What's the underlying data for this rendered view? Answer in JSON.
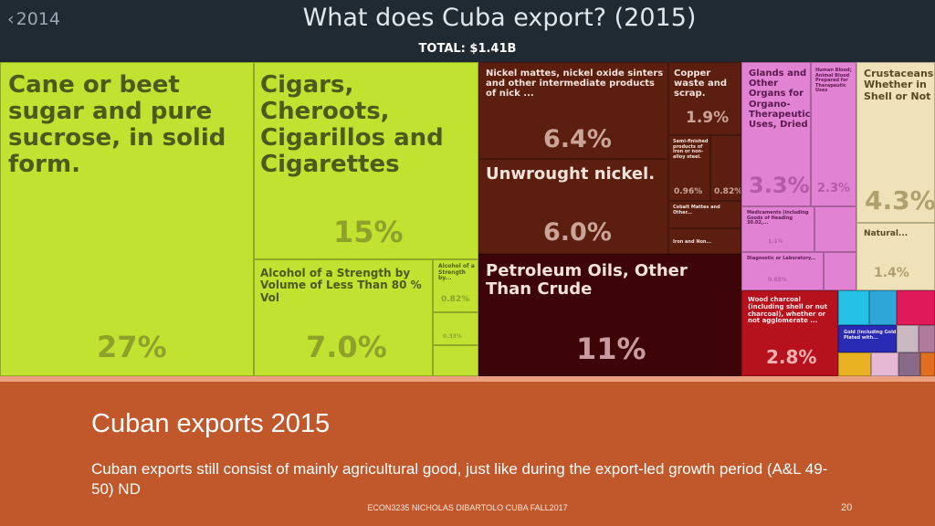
{
  "header": {
    "back_label": "2014",
    "title": "What does Cuba export? (2015)",
    "total": "TOTAL: $1.41B"
  },
  "chart_data": {
    "type": "treemap",
    "title": "What does Cuba export? (2015)",
    "total": "$1.41B",
    "items": [
      {
        "name": "Cane or beet sugar and pure sucrose, in solid form.",
        "share": "27%",
        "color": "#c1e231"
      },
      {
        "name": "Cigars, Cheroots, Cigarillos and Cigarettes",
        "share": "15%",
        "color": "#c1e231"
      },
      {
        "name": "Alcohol of a Strength by Volume of Less Than 80 % Vol",
        "share": "7.0%",
        "color": "#c1e231"
      },
      {
        "name": "Alcohol of a Strength by...",
        "share": "0.82%",
        "color": "#c1e231"
      },
      {
        "name": "",
        "share": "0.33%",
        "color": "#c1e231"
      },
      {
        "name": "Nickel mattes, nickel oxide sinters and other intermediate products of nick ...",
        "share": "6.4%",
        "color": "#5c1e0f"
      },
      {
        "name": "Unwrought nickel.",
        "share": "6.0%",
        "color": "#5c1e0f"
      },
      {
        "name": "Copper waste and scrap.",
        "share": "1.9%",
        "color": "#5c1e0f"
      },
      {
        "name": "Semi-finished products of iron or non-alloy steel.",
        "share": "0.96%",
        "color": "#5c1e0f"
      },
      {
        "name": "",
        "share": "0.82%",
        "color": "#5c1e0f"
      },
      {
        "name": "Cobalt Mattes and Other...",
        "share": "",
        "color": "#5c1e0f"
      },
      {
        "name": "Iron and Non...",
        "share": "",
        "color": "#5c1e0f"
      },
      {
        "name": "Petroleum Oils, Other Than Crude",
        "share": "11%",
        "color": "#3e0508"
      },
      {
        "name": "Glands and Other Organs for Organo-Therapeutic Uses, Dried",
        "share": "3.3%",
        "color": "#e182d2"
      },
      {
        "name": "Human Blood; Animal Blood Prepared for Therapeutic Uses",
        "share": "2.3%",
        "color": "#e182d2"
      },
      {
        "name": "Medicaments (including Goods of Heading 30.02,...",
        "share": "1.1%",
        "color": "#e182d2"
      },
      {
        "name": "Diagnostic or Laboratory...",
        "share": "0.65%",
        "color": "#e182d2"
      },
      {
        "name": "Crustaceans, Whether in Shell or Not",
        "share": "4.3%",
        "color": "#f0e2b8"
      },
      {
        "name": "Natural...",
        "share": "1.4%",
        "color": "#f0e2b8"
      },
      {
        "name": "Wood charcoal (including shell or nut charcoal), whether or not agglomerate ...",
        "share": "2.8%",
        "color": "#b5121d"
      },
      {
        "name": "Gold (including Gold Plated with...",
        "share": "",
        "color": "#2a2bb5"
      }
    ]
  },
  "caption": {
    "title": "Cuban exports 2015",
    "body": "Cuban exports still consist of mainly agricultural good, just like during the export-led growth period (A&L 49-50) ND"
  },
  "footer": {
    "text": "ECON3235 NICHOLAS DIBARTOLO CUBA  FALL2017",
    "page": "20"
  }
}
